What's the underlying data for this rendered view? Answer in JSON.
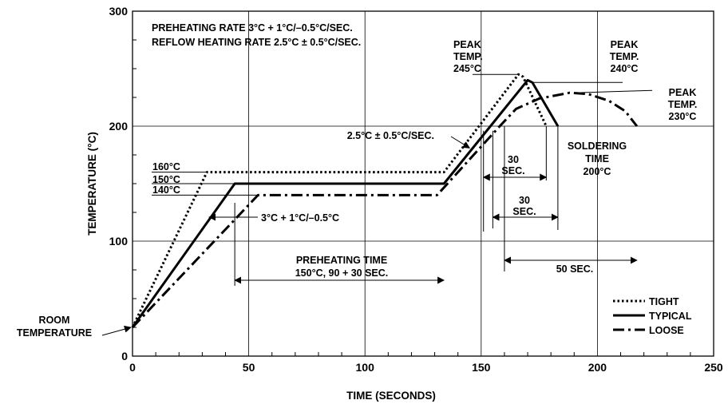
{
  "chart_data": {
    "type": "line",
    "title": "",
    "xlabel": "TIME (SECONDS)",
    "ylabel": "TEMPERATURE (°C)",
    "xlim": [
      0,
      250
    ],
    "ylim": [
      0,
      300
    ],
    "xticks": [
      0,
      50,
      100,
      150,
      200,
      250
    ],
    "yticks": [
      0,
      100,
      200,
      300
    ],
    "grid": true,
    "legend_position": "bottom-right",
    "series": [
      {
        "name": "TIGHT",
        "style": "dotted",
        "points": [
          [
            0,
            25
          ],
          [
            32,
            160
          ],
          [
            134,
            160
          ],
          [
            166,
            245
          ],
          [
            168,
            243
          ],
          [
            178,
            200
          ]
        ]
      },
      {
        "name": "TYPICAL",
        "style": "solid",
        "points": [
          [
            0,
            25
          ],
          [
            44,
            150
          ],
          [
            134,
            150
          ],
          [
            170,
            240
          ],
          [
            172,
            238
          ],
          [
            183,
            200
          ]
        ]
      },
      {
        "name": "LOOSE",
        "style": "dash-dot",
        "points": [
          [
            0,
            25
          ],
          [
            54,
            140
          ],
          [
            131,
            140
          ],
          [
            158,
            200
          ],
          [
            165,
            215
          ],
          [
            175,
            224
          ],
          [
            188,
            229
          ],
          [
            196,
            228
          ],
          [
            205,
            222
          ],
          [
            212,
            213
          ],
          [
            217,
            200
          ]
        ]
      }
    ],
    "annotations": {
      "rates": [
        "PREHEATING RATE 3°C + 1°C/–0.5°C/SEC.",
        "REFLOW HEATING RATE 2.5°C ± 0.5°C/SEC."
      ],
      "room_temperature": [
        "ROOM",
        "TEMPERATURE"
      ],
      "plateau_labels": [
        "160°C",
        "150°C",
        "140°C"
      ],
      "ramp_rate": "3°C + 1°C/–0.5°C",
      "reflow_rate": "2.5°C ± 0.5°C/SEC.",
      "preheating_time": [
        "PREHEATING TIME",
        "150°C, 90 + 30 SEC."
      ],
      "peak_245": [
        "PEAK",
        "TEMP.",
        "245°C"
      ],
      "peak_240": [
        "PEAK",
        "TEMP.",
        "240°C"
      ],
      "peak_230": [
        "PEAK",
        "TEMP.",
        "230°C"
      ],
      "soldering_time": [
        "SOLDERING",
        "TIME",
        "200°C"
      ],
      "span_30_a": [
        "30",
        "SEC."
      ],
      "span_30_b": [
        "30",
        "SEC."
      ],
      "span_50": "50 SEC."
    }
  }
}
